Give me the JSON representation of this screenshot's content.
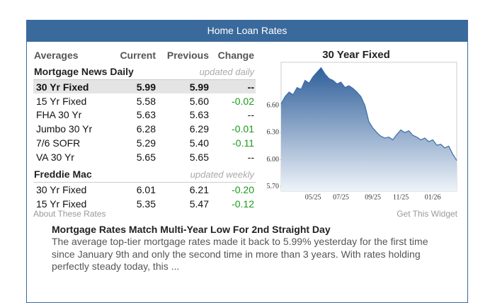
{
  "header": {
    "title": "Home Loan Rates"
  },
  "table": {
    "columns": [
      "Averages",
      "Current",
      "Previous",
      "Change"
    ],
    "groups": [
      {
        "name": "Mortgage News Daily",
        "note": "updated daily",
        "rows": [
          [
            "30 Yr Fixed",
            "5.99",
            "5.99",
            "--"
          ],
          [
            "15 Yr Fixed",
            "5.58",
            "5.60",
            "-0.02"
          ],
          [
            "FHA 30 Yr",
            "5.63",
            "5.63",
            "--"
          ],
          [
            "Jumbo 30 Yr",
            "6.28",
            "6.29",
            "-0.01"
          ],
          [
            "7/6 SOFR",
            "5.29",
            "5.40",
            "-0.11"
          ],
          [
            "VA 30 Yr",
            "5.65",
            "5.65",
            "--"
          ]
        ]
      },
      {
        "name": "Freddie Mac",
        "note": "updated weekly",
        "rows": [
          [
            "30 Yr Fixed",
            "6.01",
            "6.21",
            "-0.20"
          ],
          [
            "15 Yr Fixed",
            "5.35",
            "5.47",
            "-0.12"
          ]
        ]
      }
    ]
  },
  "links": {
    "about": "About These Rates",
    "widget": "Get This Widget"
  },
  "chart_data": {
    "type": "area",
    "title": "30 Year Fixed",
    "categories": [
      null,
      null,
      null,
      null,
      null,
      null,
      null,
      null,
      "05/25",
      null,
      null,
      null,
      null,
      null,
      null,
      "07/25",
      null,
      null,
      null,
      null,
      null,
      null,
      null,
      "09/25",
      null,
      null,
      null,
      null,
      null,
      null,
      "11/25",
      null,
      null,
      null,
      null,
      null,
      null,
      null,
      "01/26",
      null,
      null,
      null,
      null,
      null,
      null
    ],
    "series": [
      {
        "name": "30 Year Fixed",
        "color": "#3d6da6",
        "values": [
          6.62,
          6.7,
          6.75,
          6.72,
          6.8,
          6.78,
          6.88,
          6.85,
          6.92,
          6.97,
          7.02,
          6.95,
          6.9,
          6.88,
          6.84,
          6.86,
          6.8,
          6.82,
          6.79,
          6.75,
          6.7,
          6.6,
          6.42,
          6.35,
          6.3,
          6.26,
          6.24,
          6.25,
          6.22,
          6.28,
          6.33,
          6.3,
          6.32,
          6.27,
          6.25,
          6.22,
          6.24,
          6.2,
          6.22,
          6.16,
          6.17,
          6.13,
          6.15,
          6.06,
          5.99
        ]
      }
    ],
    "ylim": [
      5.65,
      7.08
    ],
    "yticks": [
      {
        "value": 6.6,
        "label": "6.60"
      },
      {
        "value": 6.3,
        "label": "6.30"
      },
      {
        "value": 6.0,
        "label": "6.00"
      },
      {
        "value": 5.7,
        "label": "5.70"
      }
    ],
    "grid": false
  },
  "article": {
    "title": "Mortgage Rates Match Multi-Year Low For 2nd Straight Day",
    "text": "The average top-tier mortgage rates made it back to 5.99% yesterday for the first time since January 9th and only the second time in more than 3 years. With rates holding perfectly steady today, this ..."
  }
}
